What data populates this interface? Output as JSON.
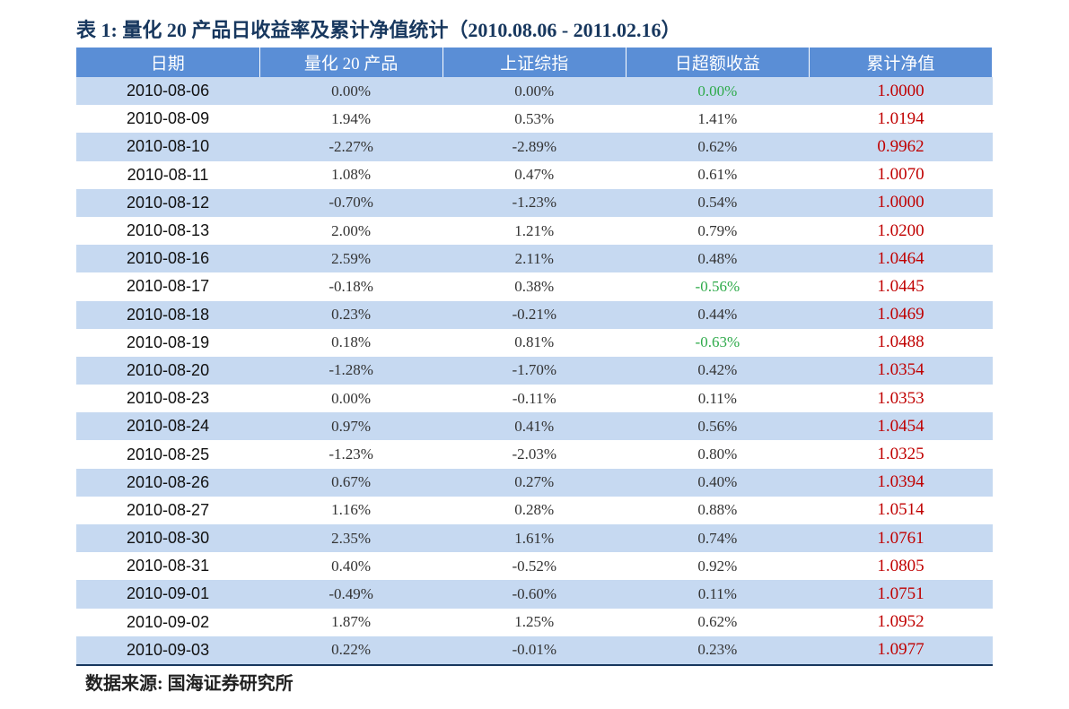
{
  "title": "表 1: 量化 20 产品日收益率及累计净值统计（2010.08.06 - 2011.02.16）",
  "table": {
    "header": [
      "日期",
      "量化 20 产品",
      "上证综指",
      "日超额收益",
      "累计净值"
    ],
    "rows": [
      [
        "2010-08-06",
        "0.00%",
        "0.00%",
        "0.00%",
        "1.0000"
      ],
      [
        "2010-08-09",
        "1.94%",
        "0.53%",
        "1.41%",
        "1.0194"
      ],
      [
        "2010-08-10",
        "-2.27%",
        "-2.89%",
        "0.62%",
        "0.9962"
      ],
      [
        "2010-08-11",
        "1.08%",
        "0.47%",
        "0.61%",
        "1.0070"
      ],
      [
        "2010-08-12",
        "-0.70%",
        "-1.23%",
        "0.54%",
        "1.0000"
      ],
      [
        "2010-08-13",
        "2.00%",
        "1.21%",
        "0.79%",
        "1.0200"
      ],
      [
        "2010-08-16",
        "2.59%",
        "2.11%",
        "0.48%",
        "1.0464"
      ],
      [
        "2010-08-17",
        "-0.18%",
        "0.38%",
        "-0.56%",
        "1.0445"
      ],
      [
        "2010-08-18",
        "0.23%",
        "-0.21%",
        "0.44%",
        "1.0469"
      ],
      [
        "2010-08-19",
        "0.18%",
        "0.81%",
        "-0.63%",
        "1.0488"
      ],
      [
        "2010-08-20",
        "-1.28%",
        "-1.70%",
        "0.42%",
        "1.0354"
      ],
      [
        "2010-08-23",
        "0.00%",
        "-0.11%",
        "0.11%",
        "1.0353"
      ],
      [
        "2010-08-24",
        "0.97%",
        "0.41%",
        "0.56%",
        "1.0454"
      ],
      [
        "2010-08-25",
        "-1.23%",
        "-2.03%",
        "0.80%",
        "1.0325"
      ],
      [
        "2010-08-26",
        "0.67%",
        "0.27%",
        "0.40%",
        "1.0394"
      ],
      [
        "2010-08-27",
        "1.16%",
        "0.28%",
        "0.88%",
        "1.0514"
      ],
      [
        "2010-08-30",
        "2.35%",
        "1.61%",
        "0.74%",
        "1.0761"
      ],
      [
        "2010-08-31",
        "0.40%",
        "-0.52%",
        "0.92%",
        "1.0805"
      ],
      [
        "2010-09-01",
        "-0.49%",
        "-0.60%",
        "0.11%",
        "1.0751"
      ],
      [
        "2010-09-02",
        "1.87%",
        "1.25%",
        "0.62%",
        "1.0952"
      ],
      [
        "2010-09-03",
        "0.22%",
        "-0.01%",
        "0.23%",
        "1.0977"
      ]
    ]
  },
  "source": "数据来源: 国海证券研究所"
}
